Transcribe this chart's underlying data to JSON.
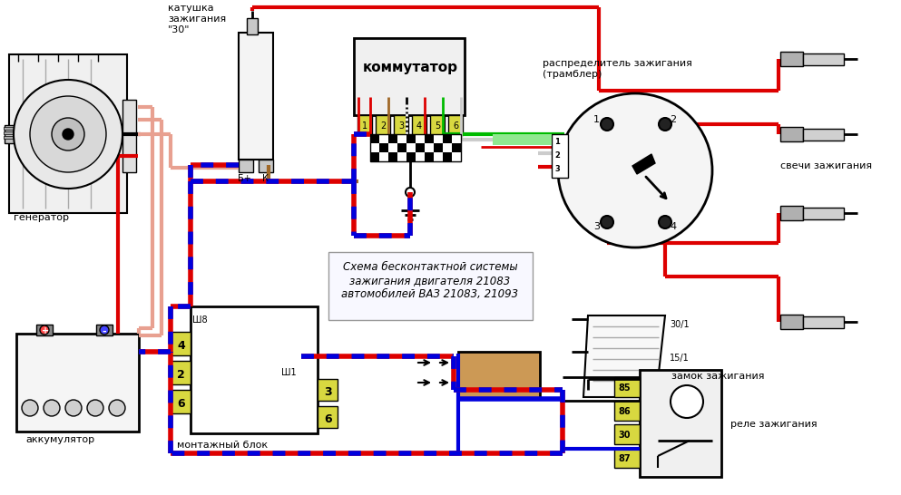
{
  "bg_color": "#ffffff",
  "fig_width": 9.93,
  "fig_height": 5.46,
  "labels": {
    "generator": "генератор",
    "coil": "катушка\nзажигания\n\"30\"",
    "commutator": "коммутатор",
    "distributor": "распределитель зажигания\n(трамблер)",
    "spark_plugs": "свечи зажигания",
    "battery": "аккумулятор",
    "mounting_block": "монтажный блок",
    "relay": "реле зажигания",
    "ignition_lock": "замок зажигания",
    "schema_text": "Схема бесконтактной системы\nзажигания двигателя 21083\nавтомобилей ВАЗ 21083, 21093",
    "Bplus": "Б+",
    "K": "К",
    "Sh8": "Ш8",
    "Sh1": "Ш1",
    "terminal_30_1": "30/1",
    "terminal_15_1": "15/1"
  },
  "colors": {
    "red": "#dd0000",
    "blue": "#0000dd",
    "pink": "#e8a090",
    "brown": "#a06828",
    "green": "#00aa00",
    "black": "#000000",
    "white": "#ffffff",
    "light_yellow": "#d8d840",
    "gray": "#888888",
    "lgray": "#cccccc",
    "dgray": "#444444",
    "checker_white": "#ffffff",
    "light_green": "#90d090"
  }
}
